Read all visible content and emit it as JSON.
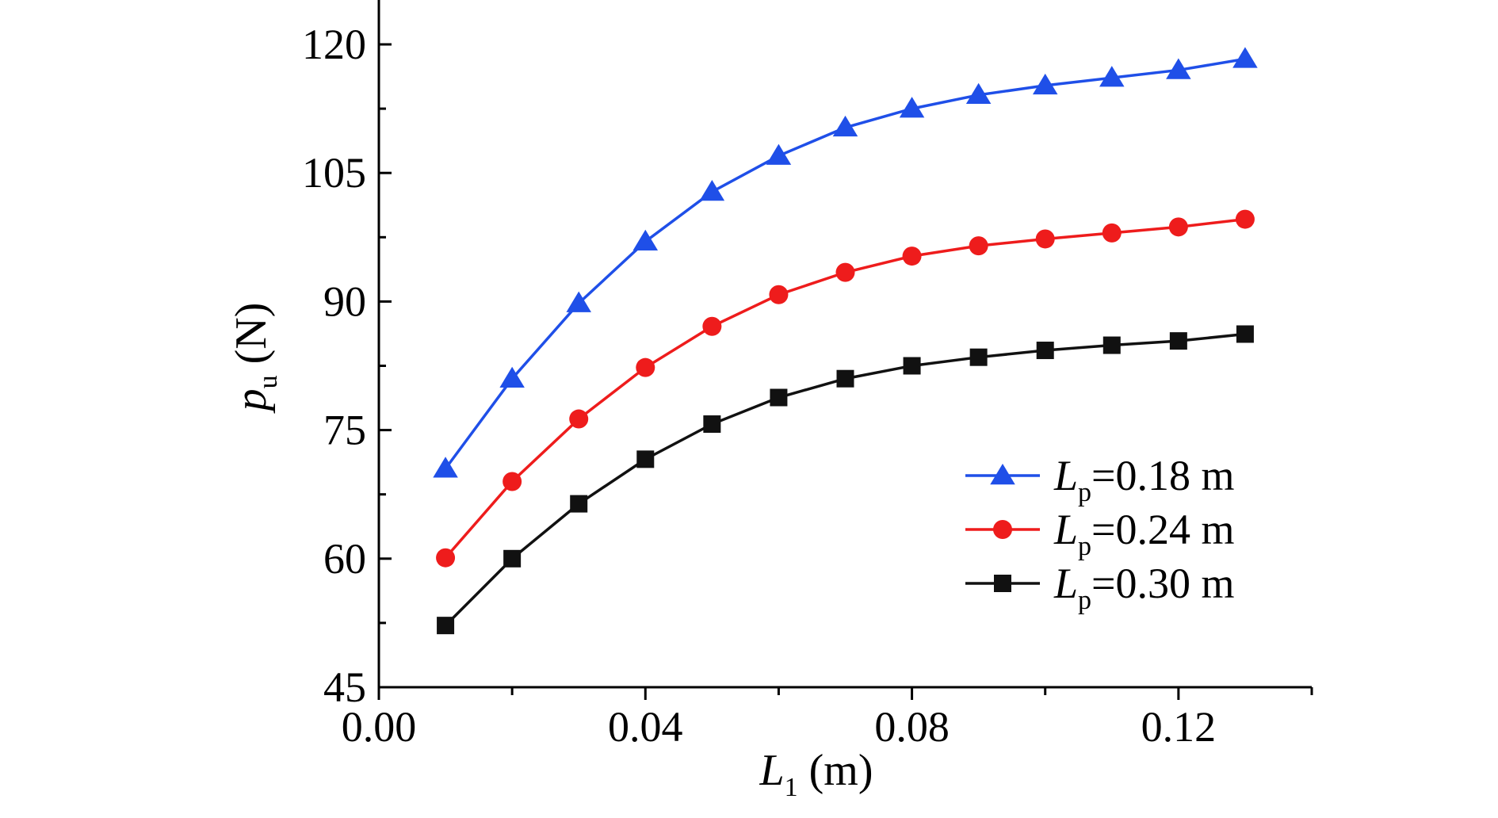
{
  "chart_data": {
    "type": "line",
    "xlabel": {
      "main": "L",
      "sub": "1",
      "unit": " (m)"
    },
    "ylabel": {
      "main": "p",
      "sub": "u",
      "unit": " (N)"
    },
    "xlim": [
      0.0,
      0.14
    ],
    "ylim": [
      45,
      120
    ],
    "x_ticks": [
      0.0,
      0.04,
      0.08,
      0.12
    ],
    "x_tick_labels": [
      "0.00",
      "0.04",
      "0.08",
      "0.12"
    ],
    "y_ticks": [
      45,
      60,
      75,
      90,
      105,
      120
    ],
    "y_tick_labels": [
      "45",
      "60",
      "75",
      "90",
      "105",
      "120"
    ],
    "grid": false,
    "legend_position": "bottom-right",
    "x": [
      0.01,
      0.02,
      0.03,
      0.04,
      0.05,
      0.06,
      0.07,
      0.08,
      0.09,
      0.1,
      0.11,
      0.12,
      0.13
    ],
    "series": [
      {
        "name": "L",
        "name_sub": "p",
        "name_value": "=0.18 m",
        "color": "#1f4fe8",
        "marker": "triangle",
        "values": [
          70.5,
          81.0,
          89.8,
          97.0,
          102.8,
          107.0,
          110.3,
          112.5,
          114.1,
          115.2,
          116.1,
          117.0,
          118.3
        ]
      },
      {
        "name": "L",
        "name_sub": "p",
        "name_value": "=0.24 m",
        "color": "#ee1c1c",
        "marker": "circle",
        "values": [
          60.1,
          69.0,
          76.3,
          82.3,
          87.1,
          90.8,
          93.4,
          95.3,
          96.5,
          97.3,
          98.0,
          98.7,
          99.6
        ]
      },
      {
        "name": "L",
        "name_sub": "p",
        "name_value": "=0.30 m",
        "color": "#111111",
        "marker": "square",
        "values": [
          52.2,
          60.0,
          66.4,
          71.6,
          75.7,
          78.8,
          81.0,
          82.5,
          83.5,
          84.3,
          84.9,
          85.4,
          86.2
        ]
      }
    ]
  }
}
